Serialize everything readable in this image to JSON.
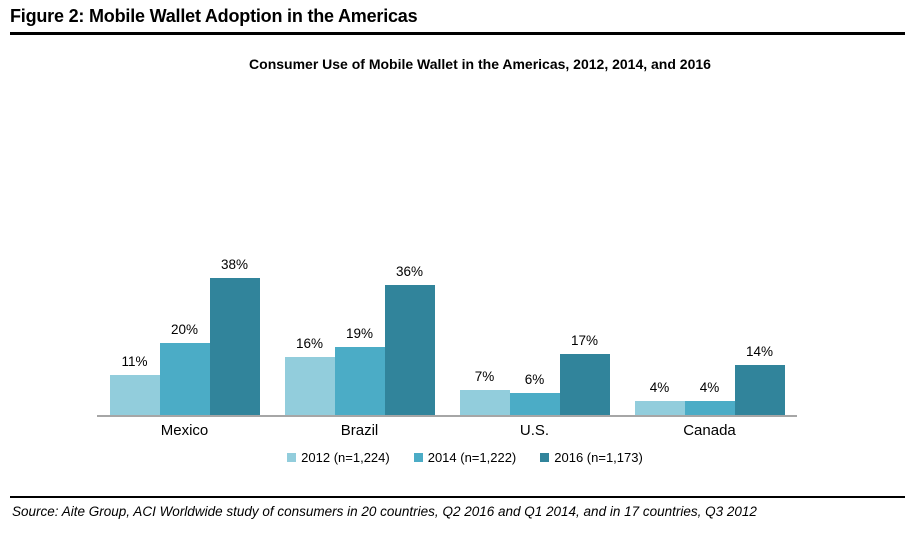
{
  "page": {
    "heading": "Figure 2: Mobile Wallet Adoption in the Americas",
    "source_note": "Source: Aite Group, ACI Worldwide study of consumers in 20 countries, Q2 2016 and Q1 2014, and in 17 countries, Q3 2012"
  },
  "chart_data": {
    "type": "bar",
    "title": "Consumer Use of Mobile Wallet in the Americas, 2012, 2014, and 2016",
    "categories": [
      "Mexico",
      "Brazil",
      "U.S.",
      "Canada"
    ],
    "series": [
      {
        "name": "2012 (n=1,224)",
        "color": "#92cddc",
        "values": [
          11,
          16,
          7,
          4
        ]
      },
      {
        "name": "2014 (n=1,222)",
        "color": "#4bacc6",
        "values": [
          20,
          19,
          6,
          4
        ]
      },
      {
        "name": "2016 (n=1,173)",
        "color": "#31849b",
        "values": [
          38,
          36,
          17,
          14
        ]
      }
    ],
    "value_suffix": "%",
    "data_labels": true,
    "ylim": [
      0,
      40
    ],
    "y_axis_visible": false,
    "gridlines": false,
    "legend_position": "bottom",
    "axis_line_color": "#a6a6a6"
  }
}
